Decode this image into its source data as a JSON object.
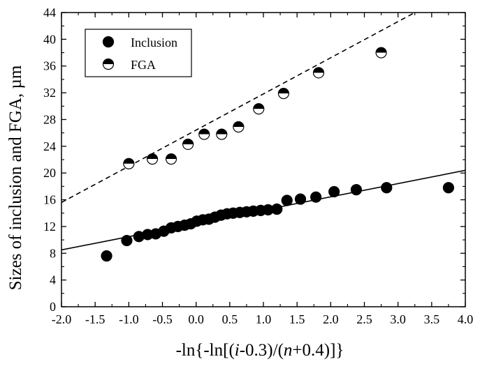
{
  "chart_data": {
    "type": "scatter",
    "title": "",
    "xlabel_parts": [
      "-ln{-ln[(",
      "i",
      "-0.3)/(",
      "n",
      "+0.4)]}"
    ],
    "ylabel": "Sizes of inclusion and FGA, µm",
    "xlim": [
      -2.0,
      4.0
    ],
    "ylim": [
      0,
      44
    ],
    "xticks": [
      -2.0,
      -1.5,
      -1.0,
      -0.5,
      0.0,
      0.5,
      1.0,
      1.5,
      2.0,
      2.5,
      3.0,
      3.5,
      4.0
    ],
    "xtick_labels": [
      "-2.0",
      "-1.5",
      "-1.0",
      "-0.5",
      "0.0",
      "0.5",
      "1.0",
      "1.5",
      "2.0",
      "2.5",
      "3.0",
      "3.5",
      "4.0"
    ],
    "yticks": [
      0,
      4,
      8,
      12,
      16,
      20,
      24,
      28,
      32,
      36,
      40,
      44
    ],
    "ytick_labels": [
      "0",
      "4",
      "8",
      "12",
      "16",
      "20",
      "24",
      "28",
      "32",
      "36",
      "40",
      "44"
    ],
    "grid": false,
    "legend_position": "top-left",
    "series": [
      {
        "name": "Inclusion",
        "marker": "filled-circle",
        "color": "#000000",
        "x": [
          -1.33,
          -1.03,
          -0.85,
          -0.72,
          -0.6,
          -0.48,
          -0.37,
          -0.27,
          -0.17,
          -0.08,
          0.01,
          0.1,
          0.19,
          0.28,
          0.37,
          0.46,
          0.55,
          0.65,
          0.75,
          0.85,
          0.96,
          1.07,
          1.2,
          1.35,
          1.55,
          1.78,
          2.05,
          2.38,
          2.83,
          3.75
        ],
        "y": [
          7.6,
          9.9,
          10.5,
          10.8,
          10.9,
          11.3,
          11.8,
          12.0,
          12.2,
          12.4,
          12.8,
          13.0,
          13.1,
          13.4,
          13.7,
          13.9,
          14.0,
          14.1,
          14.2,
          14.3,
          14.4,
          14.5,
          14.6,
          15.9,
          16.1,
          16.4,
          17.2,
          17.5,
          17.8,
          17.8
        ]
      },
      {
        "name": "FGA",
        "marker": "half-filled-circle",
        "color": "#000000",
        "x": [
          -1.0,
          -0.65,
          -0.37,
          -0.12,
          0.12,
          0.38,
          0.63,
          0.93,
          1.3,
          1.82,
          2.75
        ],
        "y": [
          21.4,
          22.1,
          22.1,
          24.3,
          25.8,
          25.8,
          26.9,
          29.6,
          31.9,
          35.0,
          38.0
        ]
      }
    ],
    "fit_lines": [
      {
        "series": "Inclusion",
        "style": "solid",
        "x": [
          -2.0,
          4.0
        ],
        "y": [
          8.5,
          20.4
        ]
      },
      {
        "series": "FGA",
        "style": "dashed",
        "x": [
          -2.0,
          3.25
        ],
        "y": [
          15.6,
          44.0
        ]
      }
    ]
  }
}
